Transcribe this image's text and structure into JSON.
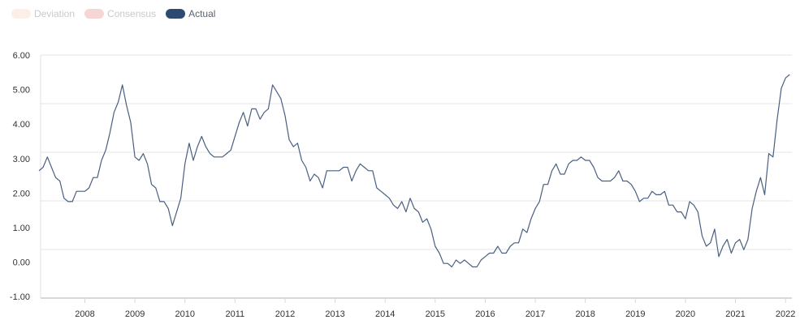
{
  "legend": [
    {
      "label": "Deviation",
      "color": "#fbefe7",
      "text_color": "#c9c9c9",
      "active": false
    },
    {
      "label": "Consensus",
      "color": "#f5d6d4",
      "text_color": "#c9c9c9",
      "active": false
    },
    {
      "label": "Actual",
      "color": "#2e4a72",
      "text_color": "#5a6473",
      "active": true
    }
  ],
  "chart_data": {
    "type": "line",
    "title": "",
    "xlabel": "",
    "ylabel": "",
    "ylim": [
      -1,
      6
    ],
    "y_ticks": [
      "6.00",
      "5.00",
      "4.00",
      "3.00",
      "2.00",
      "1.00",
      "0.00",
      "-1.00"
    ],
    "x_ticks": [
      "2008",
      "2009",
      "2010",
      "2011",
      "2012",
      "2013",
      "2014",
      "2015",
      "2016",
      "2017",
      "2018",
      "2019",
      "2020",
      "2021",
      "2022"
    ],
    "grid": true,
    "line_color": "#4a5f80",
    "series": [
      {
        "name": "Actual",
        "x": [
          "2007-02",
          "2007-03",
          "2007-04",
          "2007-05",
          "2007-06",
          "2007-07",
          "2007-08",
          "2007-09",
          "2007-10",
          "2007-11",
          "2007-12",
          "2008-01",
          "2008-02",
          "2008-03",
          "2008-04",
          "2008-05",
          "2008-06",
          "2008-07",
          "2008-08",
          "2008-09",
          "2008-10",
          "2008-11",
          "2008-12",
          "2009-01",
          "2009-02",
          "2009-03",
          "2009-04",
          "2009-05",
          "2009-06",
          "2009-07",
          "2009-08",
          "2009-09",
          "2009-10",
          "2009-11",
          "2009-12",
          "2010-01",
          "2010-02",
          "2010-03",
          "2010-04",
          "2010-05",
          "2010-06",
          "2010-07",
          "2010-08",
          "2010-09",
          "2010-10",
          "2010-11",
          "2010-12",
          "2011-01",
          "2011-02",
          "2011-03",
          "2011-04",
          "2011-05",
          "2011-06",
          "2011-07",
          "2011-08",
          "2011-09",
          "2011-10",
          "2011-11",
          "2011-12",
          "2012-01",
          "2012-02",
          "2012-03",
          "2012-04",
          "2012-05",
          "2012-06",
          "2012-07",
          "2012-08",
          "2012-09",
          "2012-10",
          "2012-11",
          "2012-12",
          "2013-01",
          "2013-02",
          "2013-03",
          "2013-04",
          "2013-05",
          "2013-06",
          "2013-07",
          "2013-08",
          "2013-09",
          "2013-10",
          "2013-11",
          "2013-12",
          "2014-01",
          "2014-02",
          "2014-03",
          "2014-04",
          "2014-05",
          "2014-06",
          "2014-07",
          "2014-08",
          "2014-09",
          "2014-10",
          "2014-11",
          "2014-12",
          "2015-01",
          "2015-02",
          "2015-03",
          "2015-04",
          "2015-05",
          "2015-06",
          "2015-07",
          "2015-08",
          "2015-09",
          "2015-10",
          "2015-11",
          "2015-12",
          "2016-01",
          "2016-02",
          "2016-03",
          "2016-04",
          "2016-05",
          "2016-06",
          "2016-07",
          "2016-08",
          "2016-09",
          "2016-10",
          "2016-11",
          "2016-12",
          "2017-01",
          "2017-02",
          "2017-03",
          "2017-04",
          "2017-05",
          "2017-06",
          "2017-07",
          "2017-08",
          "2017-09",
          "2017-10",
          "2017-11",
          "2017-12",
          "2018-01",
          "2018-02",
          "2018-03",
          "2018-04",
          "2018-05",
          "2018-06",
          "2018-07",
          "2018-08",
          "2018-09",
          "2018-10",
          "2018-11",
          "2018-12",
          "2019-01",
          "2019-02",
          "2019-03",
          "2019-04",
          "2019-05",
          "2019-06",
          "2019-07",
          "2019-08",
          "2019-09",
          "2019-10",
          "2019-11",
          "2019-12",
          "2020-01",
          "2020-02",
          "2020-03",
          "2020-04",
          "2020-05",
          "2020-06",
          "2020-07",
          "2020-08",
          "2020-09",
          "2020-10",
          "2020-11",
          "2020-12",
          "2021-01",
          "2021-02",
          "2021-03",
          "2021-04",
          "2021-05",
          "2021-06",
          "2021-07",
          "2021-08",
          "2021-09",
          "2021-10",
          "2021-11",
          "2021-12",
          "2022-01",
          "2022-02"
        ],
        "values": [
          2.6,
          2.7,
          3.0,
          2.7,
          2.4,
          2.3,
          1.8,
          1.7,
          1.7,
          2.0,
          2.0,
          2.0,
          2.1,
          2.4,
          2.4,
          2.9,
          3.2,
          3.7,
          4.3,
          4.6,
          5.1,
          4.5,
          4.0,
          3.0,
          2.9,
          3.1,
          2.8,
          2.2,
          2.1,
          1.7,
          1.7,
          1.5,
          1.0,
          1.4,
          1.8,
          2.8,
          3.4,
          2.9,
          3.3,
          3.6,
          3.3,
          3.1,
          3.0,
          3.0,
          3.0,
          3.1,
          3.2,
          3.6,
          4.0,
          4.3,
          3.9,
          4.4,
          4.4,
          4.1,
          4.3,
          4.4,
          5.1,
          4.9,
          4.7,
          4.2,
          3.5,
          3.3,
          3.4,
          2.9,
          2.7,
          2.3,
          2.5,
          2.4,
          2.1,
          2.6,
          2.6,
          2.6,
          2.6,
          2.7,
          2.7,
          2.3,
          2.6,
          2.8,
          2.7,
          2.6,
          2.6,
          2.1,
          2.0,
          1.9,
          1.8,
          1.6,
          1.5,
          1.7,
          1.4,
          1.8,
          1.5,
          1.4,
          1.1,
          1.2,
          0.9,
          0.4,
          0.2,
          -0.1,
          -0.1,
          -0.2,
          0.0,
          -0.1,
          0.0,
          -0.1,
          -0.2,
          -0.2,
          0.0,
          0.1,
          0.2,
          0.2,
          0.4,
          0.2,
          0.2,
          0.4,
          0.5,
          0.5,
          0.9,
          0.8,
          1.2,
          1.5,
          1.7,
          2.2,
          2.2,
          2.6,
          2.8,
          2.5,
          2.5,
          2.8,
          2.9,
          2.9,
          3.0,
          2.9,
          2.9,
          2.7,
          2.4,
          2.3,
          2.3,
          2.3,
          2.4,
          2.6,
          2.3,
          2.3,
          2.2,
          2.0,
          1.7,
          1.8,
          1.8,
          2.0,
          1.9,
          1.9,
          2.0,
          1.6,
          1.6,
          1.4,
          1.4,
          1.2,
          1.7,
          1.6,
          1.4,
          0.7,
          0.4,
          0.5,
          0.9,
          0.1,
          0.4,
          0.6,
          0.2,
          0.5,
          0.6,
          0.3,
          0.6,
          1.5,
          2.0,
          2.4,
          1.9,
          3.1,
          3.0,
          4.1,
          5.0,
          5.3,
          5.4
        ]
      }
    ]
  }
}
